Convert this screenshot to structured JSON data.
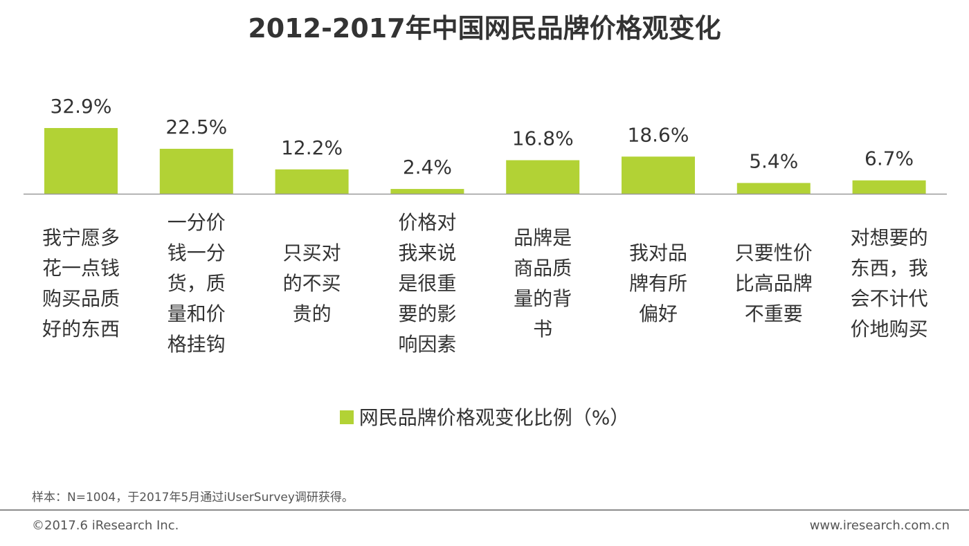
{
  "title": "2012-2017年中国网民品牌价格观变化",
  "chart_data": {
    "type": "bar",
    "categories": [
      [
        "我宁愿多",
        "花一点钱",
        "购买品质",
        "好的东西"
      ],
      [
        "一分价",
        "钱一分",
        "货，质",
        "量和价",
        "格挂钩"
      ],
      [
        "只买对",
        "的不买",
        "贵的"
      ],
      [
        "价格对",
        "我来说",
        "是很重",
        "要的影",
        "响因素"
      ],
      [
        "品牌是",
        "商品质",
        "量的背",
        "书"
      ],
      [
        "我对品",
        "牌有所",
        "偏好"
      ],
      [
        "只要性价",
        "比高品牌",
        "不重要"
      ],
      [
        "对想要的",
        "东西，我",
        "会不计代",
        "价地购买"
      ]
    ],
    "series": [
      {
        "name": "网民品牌价格观变化比例（%）",
        "values": [
          32.9,
          22.5,
          12.2,
          2.4,
          16.8,
          18.6,
          5.4,
          6.7
        ],
        "labels": [
          "32.9%",
          "22.5%",
          "12.2%",
          "2.4%",
          "16.8%",
          "18.6%",
          "5.4%",
          "6.7%"
        ],
        "color": "#b2d235"
      }
    ],
    "ylim": [
      0,
      35
    ],
    "grid": false,
    "legend": "bottom-center",
    "axis_color": "#999999"
  },
  "footer": {
    "note": "样本：N=1004，于2017年5月通过iUserSurvey调研获得。",
    "copyright": "©2017.6 iResearch Inc.",
    "website": "www.iresearch.com.cn"
  }
}
